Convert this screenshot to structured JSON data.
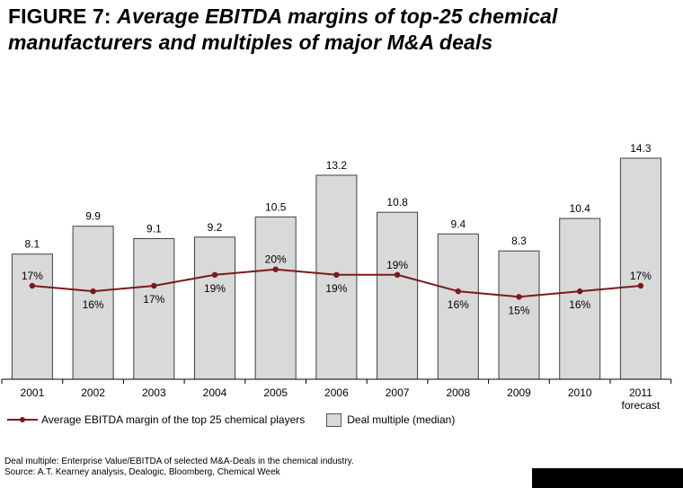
{
  "figure": {
    "label": "FIGURE 7:",
    "title": "Average EBITDA margins of top-25 chemical manufacturers and multiples of major M&A deals"
  },
  "colors": {
    "bar_fill": "#d9d9d9",
    "bar_stroke": "#404040",
    "line": "#7b1a1a"
  },
  "chart_data": {
    "type": "bar",
    "categories": [
      "2001",
      "2002",
      "2003",
      "2004",
      "2005",
      "2006",
      "2007",
      "2008",
      "2009",
      "2010",
      "2011"
    ],
    "category_sublabels": [
      "",
      "",
      "",
      "",
      "",
      "",
      "",
      "",
      "",
      "",
      "forecast"
    ],
    "series": [
      {
        "name": "Deal multiple (median)",
        "kind": "bar",
        "values": [
          8.1,
          9.9,
          9.1,
          9.2,
          10.5,
          13.2,
          10.8,
          9.4,
          8.3,
          10.4,
          14.3
        ],
        "labels": [
          "8.1",
          "9.9",
          "9.1",
          "9.2",
          "10.5",
          "13.2",
          "10.8",
          "9.4",
          "8.3",
          "10.4",
          "14.3"
        ]
      },
      {
        "name": "Average EBITDA margin of the top 25 chemical players",
        "kind": "line",
        "values": [
          17,
          16,
          17,
          19,
          20,
          19,
          19,
          16,
          15,
          16,
          17
        ],
        "labels": [
          "17%",
          "16%",
          "17%",
          "19%",
          "20%",
          "19%",
          "19%",
          "16%",
          "15%",
          "16%",
          "17%"
        ]
      }
    ],
    "title": "Average EBITDA margins of top-25 chemical manufacturers and multiples of major M&A deals",
    "xlabel": "",
    "ylabel": "",
    "ylim": [
      0,
      15
    ],
    "line_ylim": [
      0,
      60
    ],
    "legend": "bottom-left"
  },
  "legend": {
    "line_label": "Average EBITDA margin of the top 25 chemical players",
    "bar_label": "Deal multiple (median)"
  },
  "footnote": {
    "line1": "Deal multiple: Enterprise Value/EBITDA of selected M&A-Deals in the chemical industry.",
    "line2": "Source: A.T. Kearney analysis, Dealogic, Bloomberg, Chemical Week"
  }
}
